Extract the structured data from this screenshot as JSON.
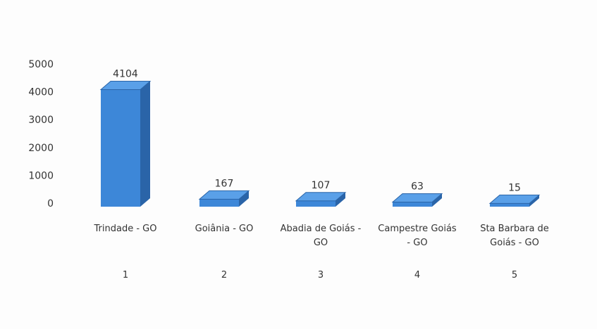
{
  "chart_data": {
    "type": "bar3d",
    "categories": [
      "Trindade - GO",
      "Goiânia - GO",
      "Abadia de Goiás - GO",
      "Campestre Goiás - GO",
      "Sta Barbara de Goiás - GO"
    ],
    "ranks": [
      1,
      2,
      3,
      4,
      5
    ],
    "values": [
      4104,
      167,
      107,
      63,
      15
    ],
    "color": "#3d87d8",
    "ylim": [
      0,
      5000
    ],
    "yticks": [
      0,
      1000,
      2000,
      3000,
      4000,
      5000
    ],
    "grid": false
  }
}
